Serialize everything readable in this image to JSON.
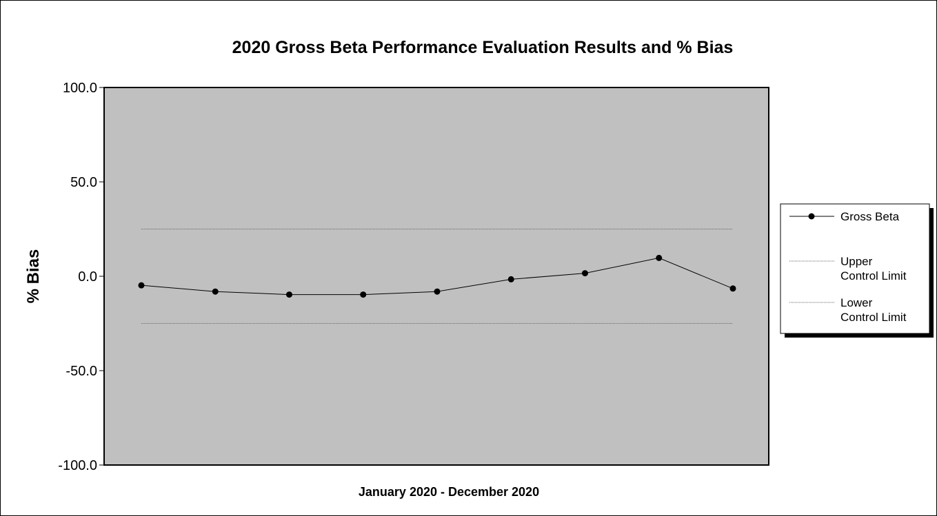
{
  "chart_data": {
    "type": "line",
    "title": "2020 Gross Beta Performance Evaluation Results and % Bias",
    "xlabel": "January 2020 - December 2020",
    "ylabel": "% Bias",
    "ylim": [
      -100,
      100
    ],
    "yticks": [
      100,
      50,
      0,
      -50,
      -100
    ],
    "ytick_labels": [
      "100.0",
      "50.0",
      "0.0",
      "-50.0",
      "-100.0"
    ],
    "grid": false,
    "plot_background": "#c0c0c0",
    "legend_position": "right",
    "series": [
      {
        "name": "Gross Beta",
        "style": "solid-markers",
        "color": "#000000",
        "values": [
          -4.8,
          -8.1,
          -9.7,
          -9.7,
          -8.1,
          -1.6,
          1.6,
          9.7,
          -6.5
        ]
      }
    ],
    "limits": [
      {
        "name": "Upper Control Limit",
        "name_lines": [
          "Upper",
          "Control Limit"
        ],
        "value": 25,
        "color": "#666666"
      },
      {
        "name": "Lower Control Limit",
        "name_lines": [
          "Lower",
          "Control Limit"
        ],
        "value": -25,
        "color": "#666666"
      }
    ]
  }
}
